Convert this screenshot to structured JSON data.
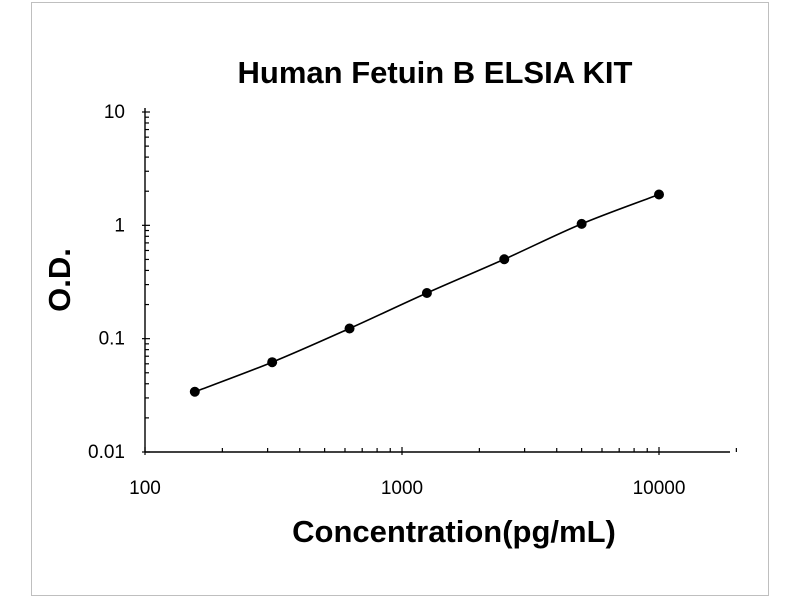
{
  "chart_data": {
    "type": "scatter",
    "title": "Human Fetuin B ELSIA KIT",
    "xlabel": "Concentration(pg/mL)",
    "ylabel": "O.D.",
    "xscale": "log",
    "yscale": "log",
    "xlim": [
      100,
      20000
    ],
    "ylim": [
      0.01,
      10
    ],
    "xticks": [
      "100",
      "1000",
      "10000"
    ],
    "yticks": [
      "10",
      "1",
      "0.1",
      "0.01"
    ],
    "grid": false,
    "legend": "none",
    "fit_line": true,
    "series": [
      {
        "x": [
          156.25,
          312.5,
          625,
          1250,
          2500,
          5000,
          10000
        ],
        "y": [
          0.034,
          0.062,
          0.123,
          0.253,
          0.502,
          1.03,
          1.87
        ]
      }
    ],
    "colors": {
      "points": "#000000",
      "line": "#000000",
      "frame": "#bfbfbf"
    }
  }
}
